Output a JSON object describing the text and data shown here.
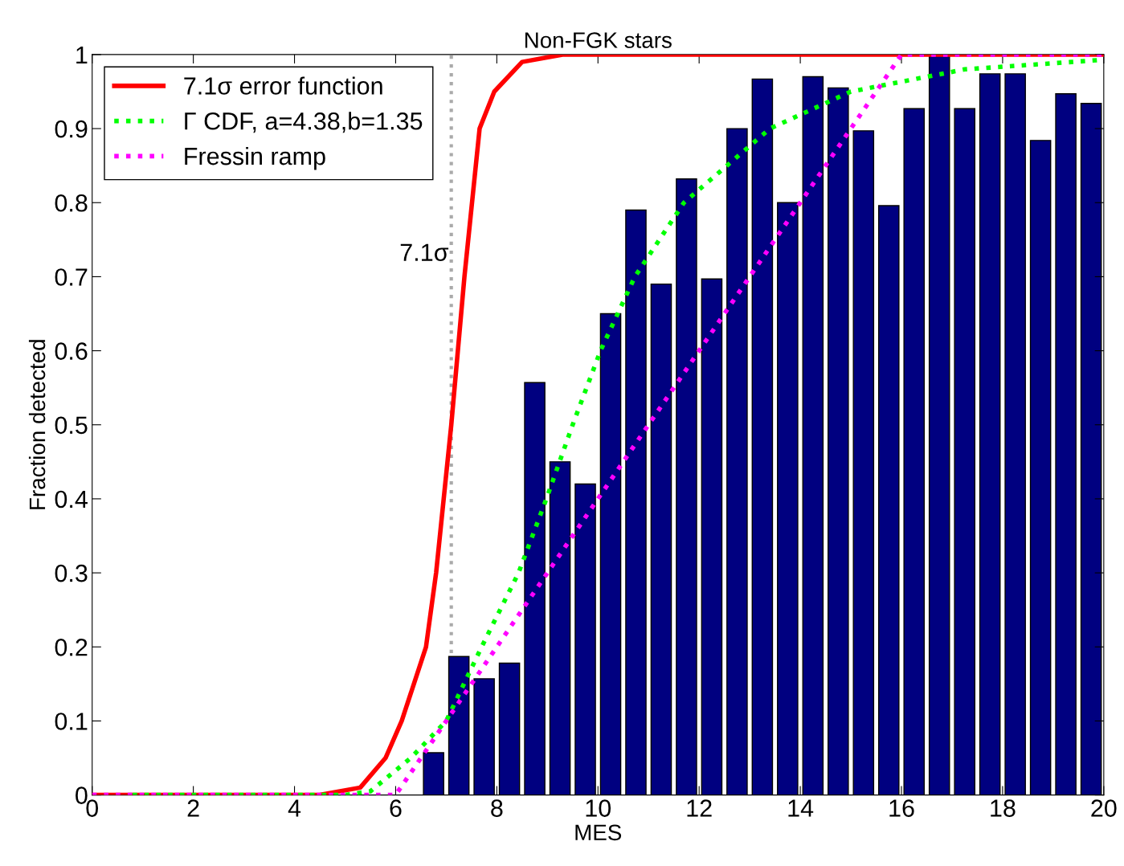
{
  "chart_data": {
    "type": "histogram",
    "title": "Non-FGK stars",
    "xlabel": "MES",
    "ylabel": "Fraction detected",
    "bins": [
      6.5,
      7,
      7.5,
      8,
      8.5,
      9,
      9.5,
      10,
      10.5,
      11,
      11.5,
      12,
      12.5,
      13,
      13.5,
      14,
      14.5,
      15,
      15.5,
      16,
      16.5,
      17,
      17.5,
      18,
      18.5,
      19,
      19.5,
      20
    ],
    "values": [
      0.057,
      0.187,
      0.157,
      0.178,
      0.557,
      0.45,
      0.42,
      0.65,
      0.79,
      0.69,
      0.832,
      0.697,
      0.9,
      0.967,
      0.8,
      0.97,
      0.955,
      0.897,
      0.796,
      0.927,
      1.0,
      0.927,
      0.974,
      0.974,
      0.884,
      0.947,
      0.934
    ],
    "color": "#000080",
    "series": [
      {
        "name": "7.1σ error function",
        "type": "line",
        "color": "#ff0000",
        "line_style": "solid",
        "x": [
          0,
          4.5,
          5.3,
          5.8,
          6.12,
          6.6,
          6.8,
          7.1,
          7.36,
          7.66,
          7.95,
          8.5,
          9.3,
          20
        ],
        "values": [
          0,
          0,
          0.01,
          0.05,
          0.1,
          0.2,
          0.3,
          0.5,
          0.7,
          0.9,
          0.95,
          0.99,
          1,
          1
        ]
      },
      {
        "name": "Γ CDF, a=4.38,b=1.35",
        "type": "line",
        "color": "#00ff00",
        "line_style": "dotted",
        "x": [
          0.8,
          5,
          5.5,
          6.3,
          7.0,
          7.7,
          8.43,
          8.98,
          9.5,
          10.05,
          10.73,
          11.7,
          13.4,
          15.0,
          17.25,
          20
        ],
        "values": [
          0,
          0,
          0.005,
          0.05,
          0.1,
          0.2,
          0.3,
          0.4,
          0.5,
          0.6,
          0.7,
          0.8,
          0.9,
          0.95,
          0.98,
          0.993
        ]
      },
      {
        "name": "Fressin ramp",
        "type": "line",
        "color": "#ff00ff",
        "line_style": "dotted",
        "x": [
          0,
          6,
          16,
          20
        ],
        "values": [
          0,
          0,
          1,
          1
        ]
      }
    ],
    "ref_lines": [
      {
        "axis": "x",
        "value": 7.1,
        "label": "7.1σ",
        "color": "#aaaaaa",
        "line_style": "dotted"
      }
    ],
    "xlim": [
      0,
      20
    ],
    "ylim": [
      0,
      1
    ],
    "xticks": [
      0,
      2,
      4,
      6,
      8,
      10,
      12,
      14,
      16,
      18,
      20
    ],
    "yticks": [
      0,
      0.1,
      0.2,
      0.3,
      0.4,
      0.5,
      0.6,
      0.7,
      0.8,
      0.9,
      1
    ],
    "legend": "top left",
    "grid": false
  }
}
